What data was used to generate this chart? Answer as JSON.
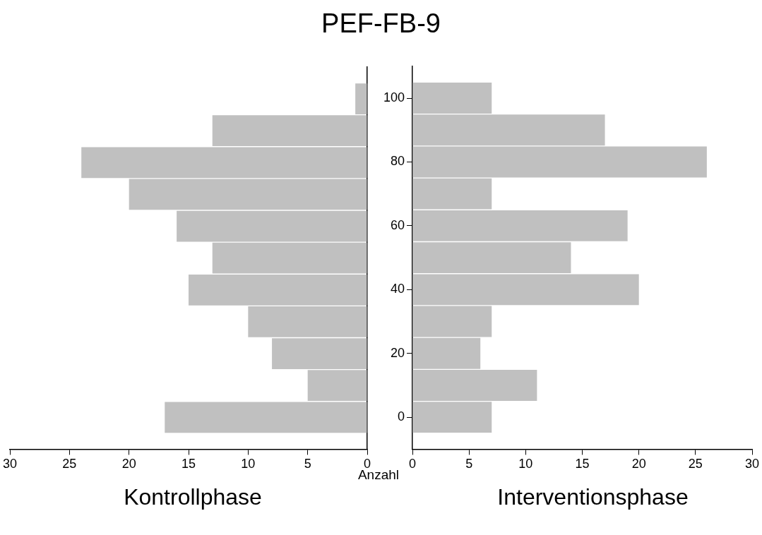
{
  "chart_data": [
    {
      "type": "histogram",
      "orientation": "horizontal",
      "title": "PEF-FB-9",
      "xlabel": "Kontrollphase",
      "annotations": [
        "Anzahl"
      ],
      "bins": [
        -5,
        5,
        15,
        25,
        35,
        45,
        55,
        65,
        75,
        85,
        95,
        105
      ],
      "values": [
        17,
        5,
        8,
        10,
        15,
        13,
        16,
        20,
        24,
        13,
        1
      ],
      "color": "#c0c0c0",
      "xlim": [
        30,
        0
      ],
      "xticks": [
        0,
        5,
        10,
        15,
        20,
        25,
        30
      ],
      "ylim": [
        -10,
        110
      ],
      "yticks": [
        0,
        20,
        40,
        60,
        80,
        100
      ],
      "tick_labels": "x",
      "grid": false,
      "legend": false
    },
    {
      "type": "histogram",
      "orientation": "horizontal",
      "xlabel": "Interventionsphase",
      "bins": [
        -5,
        5,
        15,
        25,
        35,
        45,
        55,
        65,
        75,
        85,
        95,
        105
      ],
      "values": [
        7,
        11,
        6,
        7,
        20,
        14,
        19,
        7,
        26,
        17,
        7
      ],
      "color": "#c0c0c0",
      "xlim": [
        0,
        30
      ],
      "xticks": [
        0,
        5,
        10,
        15,
        20,
        25,
        30
      ],
      "ylim": [
        -10,
        110
      ],
      "yticks": [
        0,
        20,
        40,
        60,
        80,
        100
      ],
      "grid": false,
      "legend": false
    }
  ]
}
